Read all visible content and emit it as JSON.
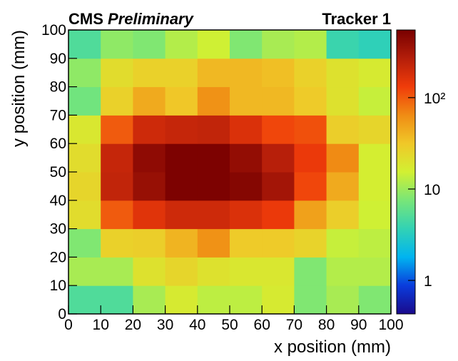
{
  "chart_data": {
    "type": "heatmap",
    "title": "CMS",
    "title_italic": "Preliminary",
    "right_title": "Tracker 1",
    "x_label": "x position (mm)",
    "y_label": "y position (mm)",
    "x_bins": [
      0,
      10,
      20,
      30,
      40,
      50,
      60,
      70,
      80,
      90,
      100
    ],
    "y_bins": [
      0,
      10,
      20,
      30,
      40,
      50,
      60,
      70,
      80,
      90,
      100
    ],
    "z": [
      [
        5,
        5,
        11,
        17,
        13,
        13,
        17,
        8,
        11,
        8
      ],
      [
        11,
        11,
        20,
        25,
        20,
        18,
        18,
        8,
        12,
        12
      ],
      [
        8,
        27,
        28,
        40,
        60,
        30,
        30,
        26,
        14,
        13
      ],
      [
        22,
        100,
        160,
        200,
        200,
        170,
        140,
        50,
        28,
        15
      ],
      [
        25,
        230,
        380,
        520,
        520,
        470,
        330,
        120,
        45,
        16
      ],
      [
        22,
        220,
        420,
        520,
        520,
        400,
        260,
        140,
        65,
        16
      ],
      [
        18,
        100,
        200,
        220,
        230,
        170,
        120,
        110,
        28,
        25
      ],
      [
        7,
        27,
        45,
        32,
        60,
        38,
        38,
        30,
        20,
        14
      ],
      [
        9,
        22,
        27,
        27,
        38,
        38,
        35,
        27,
        20,
        17
      ],
      [
        5,
        9,
        8,
        12,
        15,
        8,
        11,
        12,
        4,
        3.5
      ]
    ],
    "xlim": [
      0,
      100
    ],
    "ylim": [
      0,
      100
    ],
    "xticks": [
      0,
      10,
      20,
      30,
      40,
      50,
      60,
      70,
      80,
      90,
      100
    ],
    "yticks": [
      0,
      10,
      20,
      30,
      40,
      50,
      60,
      70,
      80,
      90,
      100
    ],
    "zlim": [
      0.43,
      550
    ],
    "zticks": [
      1,
      10,
      {
        "value": 100,
        "label": "10²"
      }
    ],
    "zlog": true,
    "colormap": [
      "#1a0a8c",
      "#0a3cdc",
      "#00b4f0",
      "#32d2b4",
      "#78e678",
      "#d2f032",
      "#f0c828",
      "#f08c14",
      "#f03c0a",
      "#b41e0a",
      "#780000"
    ]
  }
}
